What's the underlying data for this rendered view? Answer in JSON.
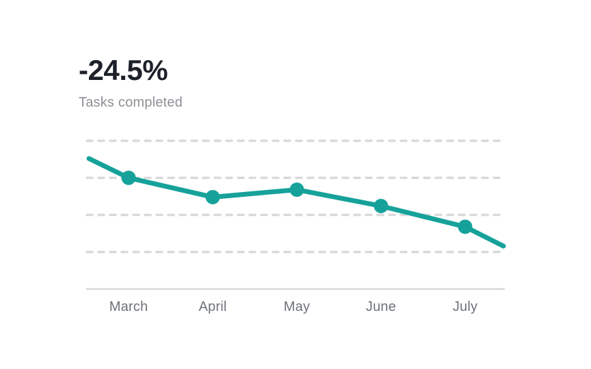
{
  "stat": {
    "value": "-24.5%",
    "label": "Tasks completed"
  },
  "colors": {
    "accent": "#16a29a",
    "gridline": "#d9d9d9",
    "axis_line": "#d7d7d7",
    "tick_label": "#6e727a",
    "stat_value": "#1d212a",
    "stat_label": "#8e9095",
    "background": "#ffffff"
  },
  "chart_data": {
    "type": "line",
    "title": "-24.5%",
    "subtitle": "Tasks completed",
    "categories": [
      "March",
      "April",
      "May",
      "June",
      "July"
    ],
    "series": [
      {
        "name": "Tasks completed",
        "values": [
          75,
          62,
          67,
          56,
          42
        ]
      }
    ],
    "edge_points": {
      "pre_start_value": 88,
      "post_end_value": 29
    },
    "xlabel": "",
    "ylabel": "",
    "ylim": [
      0,
      100
    ],
    "gridline_values": [
      100,
      75,
      50,
      25
    ],
    "grid_style": "dashed horizontal lines, no y-axis tick labels",
    "legend": "none",
    "marker": "filled circle on each month point",
    "line_color": "#16a29a"
  }
}
